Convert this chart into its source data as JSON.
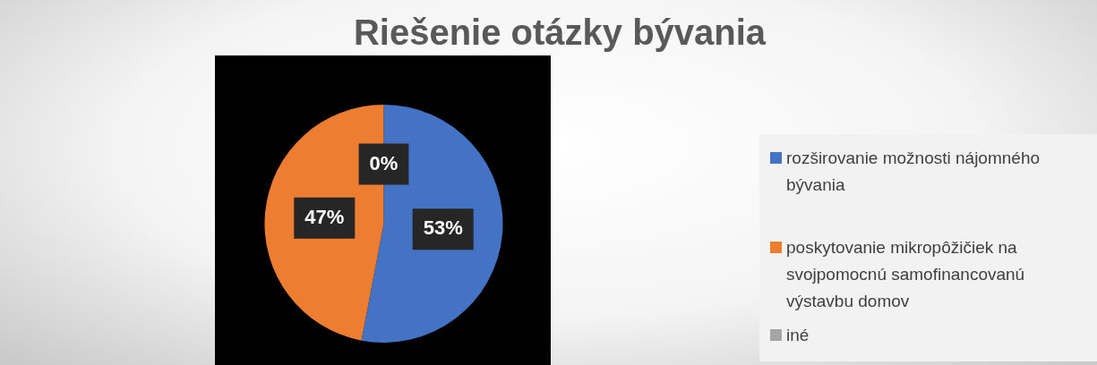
{
  "chart_data": {
    "type": "pie",
    "title": "Riešenie otázky bývania",
    "categories": [
      "rozširovanie možnosti nájomného bývania",
      "poskytovanie mikropôžičiek na svojpomocnú samofinancovanú výstavbu domov",
      "iné"
    ],
    "values": [
      53,
      47,
      0
    ],
    "colors": [
      "#4472c4",
      "#ed7d31",
      "#a5a5a5"
    ],
    "value_labels": [
      "53%",
      "47%",
      "0%"
    ],
    "legend": "right"
  }
}
